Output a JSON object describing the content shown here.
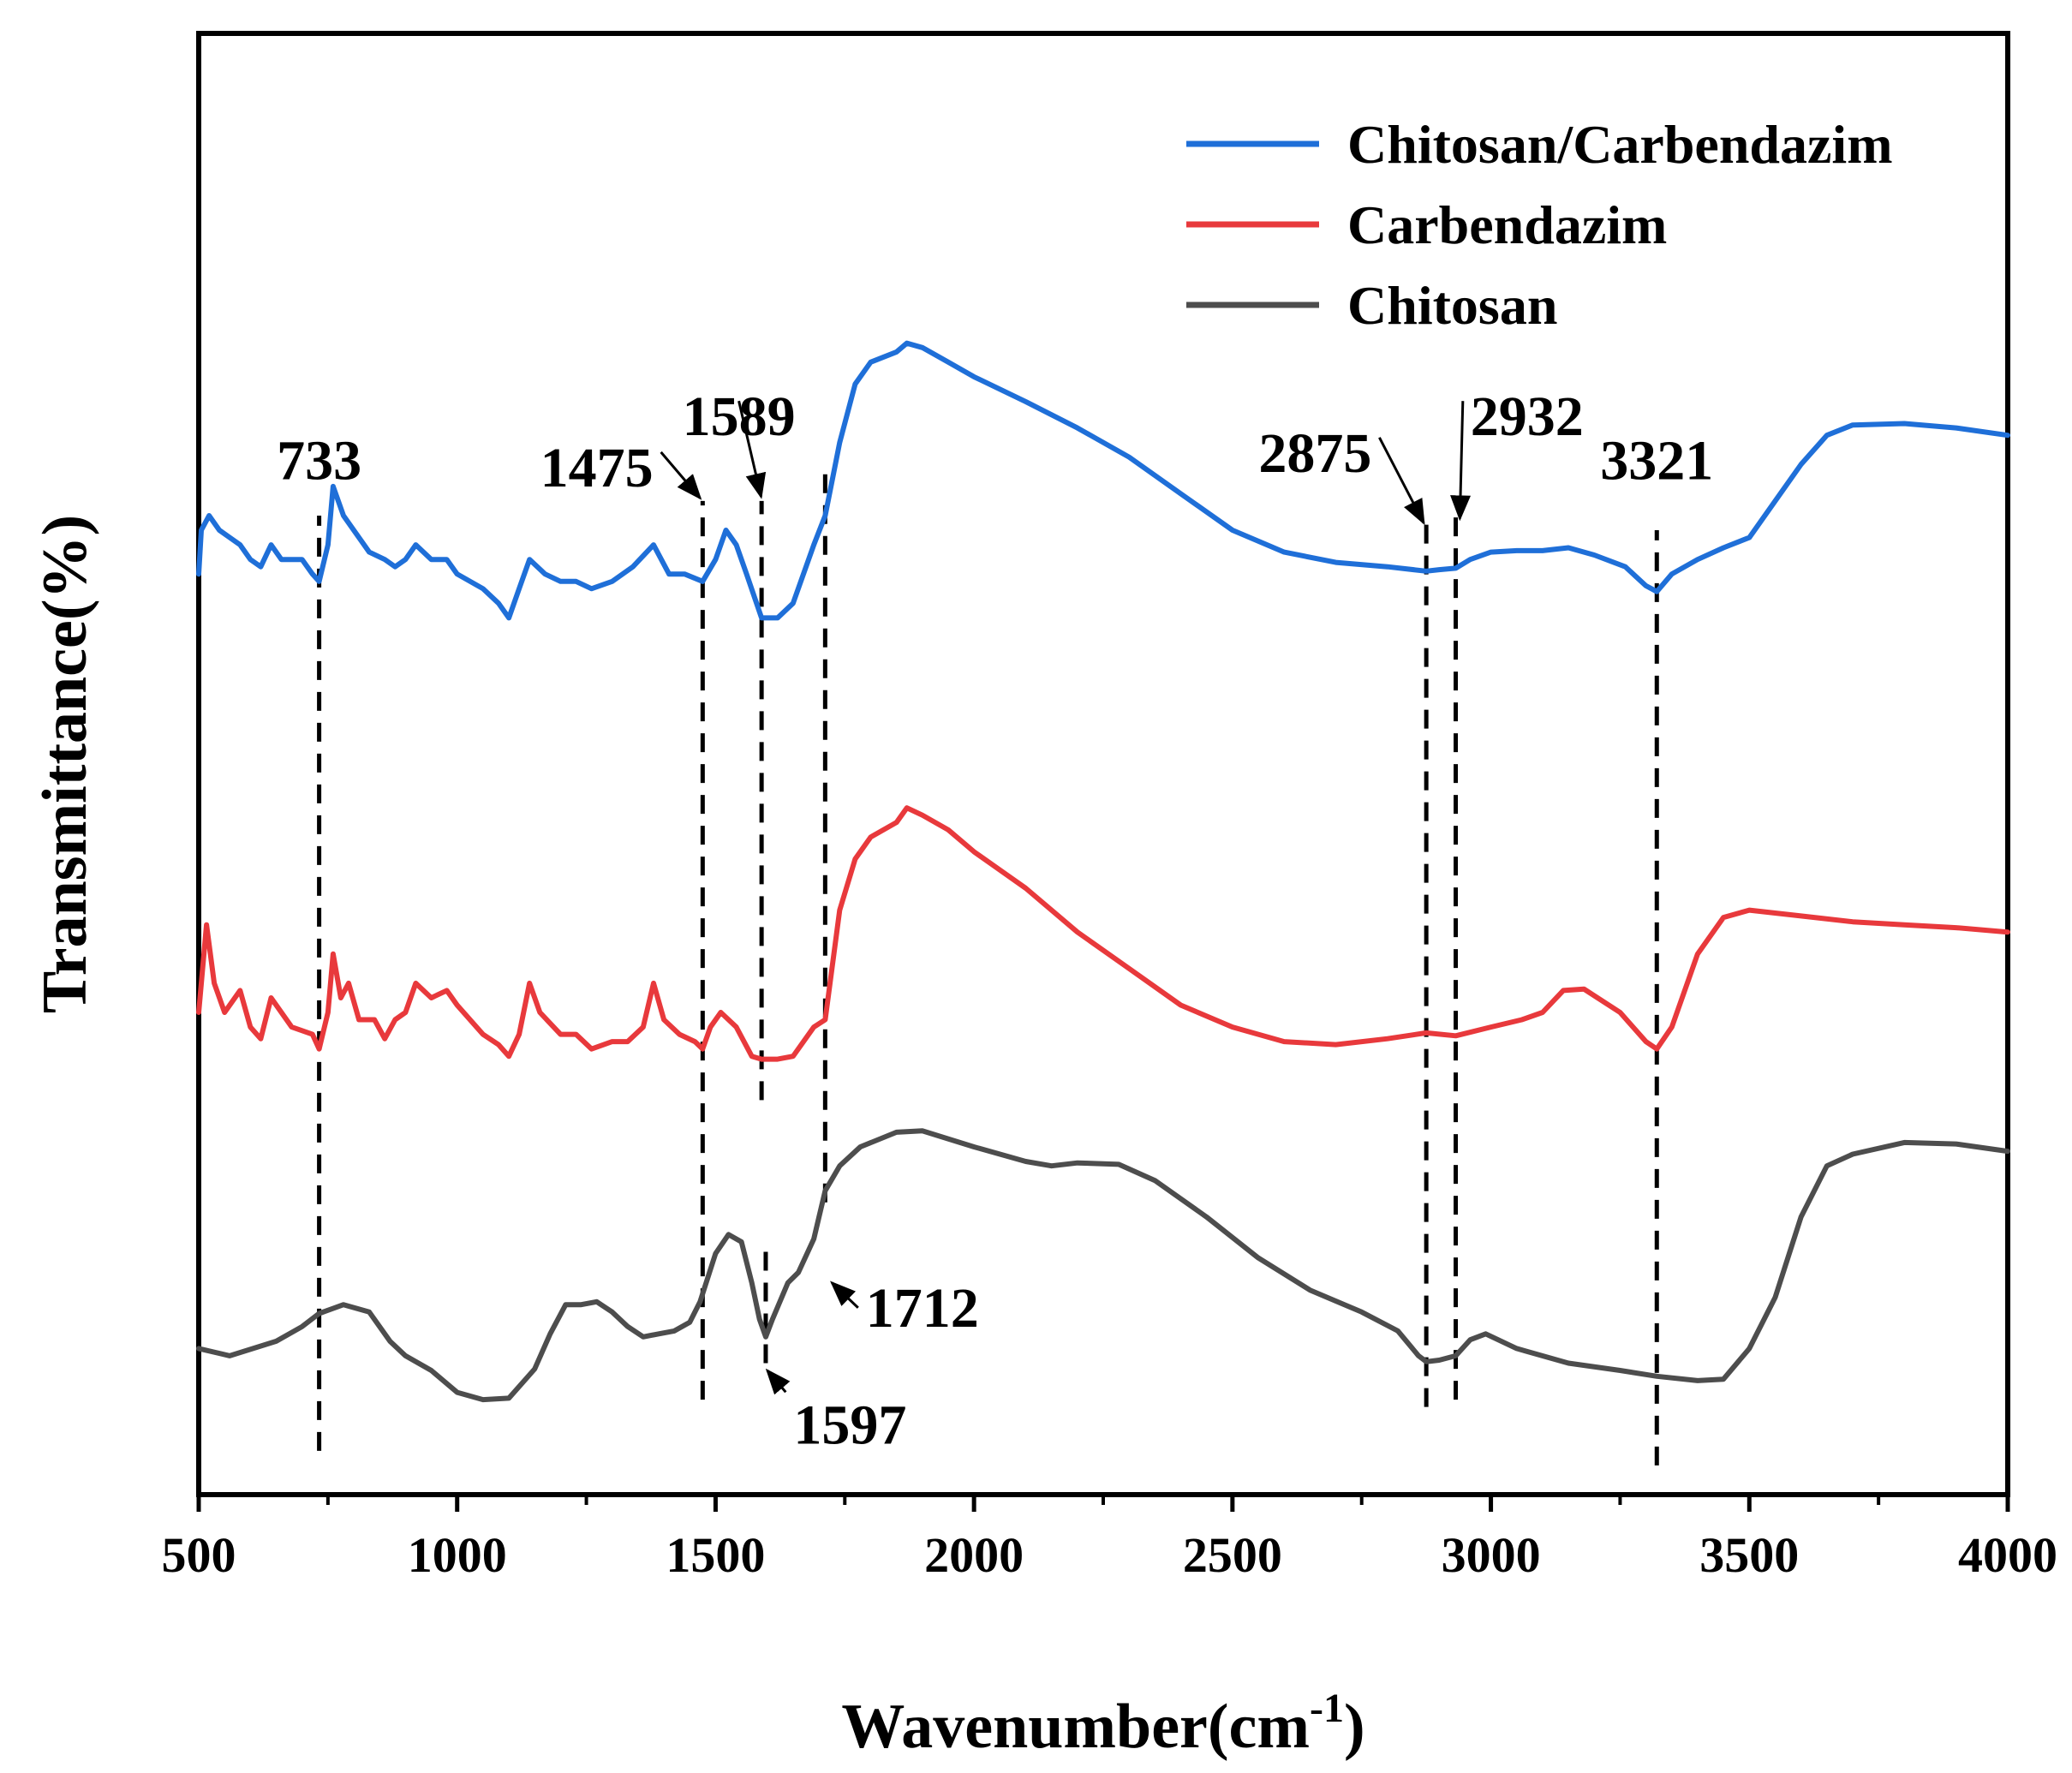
{
  "chart_data": {
    "type": "line",
    "title": "",
    "xlabel": "Wavenumber(cm",
    "xlabel_sup": "-1",
    "xlabel_suffix": ")",
    "ylabel": "Transmittance(%)",
    "xlim": [
      500,
      4000
    ],
    "ylim": [
      0,
      100
    ],
    "x_ticks": [
      500,
      1000,
      1500,
      2000,
      2500,
      3000,
      3500,
      4000
    ],
    "x_tick_labels": [
      "500",
      "1000",
      "1500",
      "2000",
      "2500",
      "3000",
      "3500",
      "4000"
    ],
    "legend_position": "top-right",
    "series": [
      {
        "name": "Chitosan",
        "color": "#4d4d4d",
        "points": [
          [
            500,
            10
          ],
          [
            560,
            9.5
          ],
          [
            650,
            10.5
          ],
          [
            700,
            11.5
          ],
          [
            733,
            12.4
          ],
          [
            780,
            13
          ],
          [
            830,
            12.5
          ],
          [
            870,
            10.5
          ],
          [
            900,
            9.5
          ],
          [
            950,
            8.5
          ],
          [
            1000,
            7
          ],
          [
            1050,
            6.5
          ],
          [
            1100,
            6.6
          ],
          [
            1150,
            8.6
          ],
          [
            1180,
            11
          ],
          [
            1210,
            13
          ],
          [
            1240,
            13
          ],
          [
            1270,
            13.2
          ],
          [
            1300,
            12.5
          ],
          [
            1330,
            11.5
          ],
          [
            1360,
            10.8
          ],
          [
            1390,
            11
          ],
          [
            1420,
            11.2
          ],
          [
            1450,
            11.8
          ],
          [
            1470,
            13.2
          ],
          [
            1500,
            16.5
          ],
          [
            1525,
            17.8
          ],
          [
            1550,
            17.3
          ],
          [
            1570,
            14.5
          ],
          [
            1585,
            12
          ],
          [
            1597,
            10.8
          ],
          [
            1610,
            12
          ],
          [
            1640,
            14.5
          ],
          [
            1660,
            15.2
          ],
          [
            1690,
            17.5
          ],
          [
            1712,
            20.8
          ],
          [
            1740,
            22.5
          ],
          [
            1780,
            23.8
          ],
          [
            1850,
            24.8
          ],
          [
            1900,
            24.9
          ],
          [
            2000,
            23.8
          ],
          [
            2100,
            22.8
          ],
          [
            2150,
            22.5
          ],
          [
            2200,
            22.7
          ],
          [
            2280,
            22.6
          ],
          [
            2350,
            21.5
          ],
          [
            2450,
            19
          ],
          [
            2550,
            16.2
          ],
          [
            2650,
            14
          ],
          [
            2750,
            12.5
          ],
          [
            2820,
            11.2
          ],
          [
            2860,
            9.5
          ],
          [
            2875,
            9.1
          ],
          [
            2900,
            9.2
          ],
          [
            2932,
            9.5
          ],
          [
            2960,
            10.6
          ],
          [
            2990,
            11
          ],
          [
            3050,
            10
          ],
          [
            3150,
            9
          ],
          [
            3250,
            8.5
          ],
          [
            3321,
            8.1
          ],
          [
            3400,
            7.8
          ],
          [
            3450,
            7.9
          ],
          [
            3500,
            10
          ],
          [
            3550,
            13.5
          ],
          [
            3600,
            19
          ],
          [
            3650,
            22.5
          ],
          [
            3700,
            23.3
          ],
          [
            3800,
            24.1
          ],
          [
            3900,
            24
          ],
          [
            4000,
            23.5
          ]
        ]
      },
      {
        "name": "Carbendazim",
        "color": "#e8393c",
        "points": [
          [
            500,
            33
          ],
          [
            515,
            39
          ],
          [
            530,
            35
          ],
          [
            550,
            33
          ],
          [
            580,
            34.5
          ],
          [
            600,
            32
          ],
          [
            620,
            31.2
          ],
          [
            640,
            34
          ],
          [
            680,
            32
          ],
          [
            720,
            31.5
          ],
          [
            733,
            30.5
          ],
          [
            750,
            33
          ],
          [
            760,
            37
          ],
          [
            775,
            34
          ],
          [
            790,
            35
          ],
          [
            810,
            32.5
          ],
          [
            840,
            32.5
          ],
          [
            860,
            31.2
          ],
          [
            880,
            32.5
          ],
          [
            900,
            33
          ],
          [
            920,
            35
          ],
          [
            950,
            34
          ],
          [
            980,
            34.5
          ],
          [
            1000,
            33.5
          ],
          [
            1050,
            31.5
          ],
          [
            1080,
            30.8
          ],
          [
            1100,
            30
          ],
          [
            1120,
            31.5
          ],
          [
            1140,
            35
          ],
          [
            1160,
            33
          ],
          [
            1200,
            31.5
          ],
          [
            1230,
            31.5
          ],
          [
            1260,
            30.5
          ],
          [
            1300,
            31
          ],
          [
            1330,
            31
          ],
          [
            1360,
            32
          ],
          [
            1380,
            35
          ],
          [
            1400,
            32.5
          ],
          [
            1430,
            31.5
          ],
          [
            1460,
            31
          ],
          [
            1475,
            30.5
          ],
          [
            1490,
            32
          ],
          [
            1510,
            33
          ],
          [
            1540,
            32
          ],
          [
            1570,
            30
          ],
          [
            1589,
            29.8
          ],
          [
            1620,
            29.8
          ],
          [
            1650,
            30
          ],
          [
            1690,
            32
          ],
          [
            1712,
            32.5
          ],
          [
            1740,
            40
          ],
          [
            1770,
            43.5
          ],
          [
            1800,
            45
          ],
          [
            1850,
            46
          ],
          [
            1870,
            47
          ],
          [
            1900,
            46.5
          ],
          [
            1950,
            45.5
          ],
          [
            2000,
            44
          ],
          [
            2100,
            41.5
          ],
          [
            2200,
            38.5
          ],
          [
            2300,
            36
          ],
          [
            2400,
            33.5
          ],
          [
            2500,
            32
          ],
          [
            2600,
            31
          ],
          [
            2700,
            30.8
          ],
          [
            2800,
            31.2
          ],
          [
            2875,
            31.6
          ],
          [
            2932,
            31.4
          ],
          [
            3000,
            32
          ],
          [
            3060,
            32.5
          ],
          [
            3100,
            33
          ],
          [
            3140,
            34.5
          ],
          [
            3180,
            34.6
          ],
          [
            3250,
            33
          ],
          [
            3300,
            31
          ],
          [
            3321,
            30.5
          ],
          [
            3350,
            32
          ],
          [
            3400,
            37
          ],
          [
            3450,
            39.5
          ],
          [
            3500,
            40
          ],
          [
            3600,
            39.6
          ],
          [
            3700,
            39.2
          ],
          [
            3800,
            39
          ],
          [
            3900,
            38.8
          ],
          [
            4000,
            38.5
          ]
        ]
      },
      {
        "name": "Chitosan/Carbendazim",
        "color": "#1f6fd8",
        "points": [
          [
            500,
            63
          ],
          [
            505,
            66
          ],
          [
            520,
            67
          ],
          [
            540,
            66
          ],
          [
            560,
            65.5
          ],
          [
            580,
            65
          ],
          [
            600,
            64
          ],
          [
            620,
            63.5
          ],
          [
            640,
            65
          ],
          [
            660,
            64
          ],
          [
            700,
            64
          ],
          [
            720,
            63
          ],
          [
            733,
            62.5
          ],
          [
            750,
            65
          ],
          [
            760,
            69
          ],
          [
            780,
            67
          ],
          [
            800,
            66
          ],
          [
            830,
            64.5
          ],
          [
            860,
            64
          ],
          [
            880,
            63.5
          ],
          [
            900,
            64
          ],
          [
            920,
            65
          ],
          [
            950,
            64
          ],
          [
            980,
            64
          ],
          [
            1000,
            63
          ],
          [
            1050,
            62
          ],
          [
            1080,
            61
          ],
          [
            1100,
            60
          ],
          [
            1120,
            62
          ],
          [
            1140,
            64
          ],
          [
            1170,
            63
          ],
          [
            1200,
            62.5
          ],
          [
            1230,
            62.5
          ],
          [
            1260,
            62
          ],
          [
            1300,
            62.5
          ],
          [
            1340,
            63.5
          ],
          [
            1380,
            65
          ],
          [
            1410,
            63
          ],
          [
            1440,
            63
          ],
          [
            1475,
            62.5
          ],
          [
            1500,
            64
          ],
          [
            1520,
            66
          ],
          [
            1540,
            65
          ],
          [
            1560,
            63
          ],
          [
            1589,
            60
          ],
          [
            1620,
            60
          ],
          [
            1650,
            61
          ],
          [
            1690,
            65
          ],
          [
            1712,
            67
          ],
          [
            1740,
            72
          ],
          [
            1770,
            76
          ],
          [
            1800,
            77.5
          ],
          [
            1850,
            78.2
          ],
          [
            1870,
            78.8
          ],
          [
            1900,
            78.5
          ],
          [
            1950,
            77.5
          ],
          [
            2000,
            76.5
          ],
          [
            2100,
            74.8
          ],
          [
            2200,
            73
          ],
          [
            2300,
            71
          ],
          [
            2400,
            68.5
          ],
          [
            2500,
            66
          ],
          [
            2600,
            64.5
          ],
          [
            2700,
            63.8
          ],
          [
            2800,
            63.5
          ],
          [
            2875,
            63.2
          ],
          [
            2900,
            63.3
          ],
          [
            2932,
            63.4
          ],
          [
            2960,
            64
          ],
          [
            3000,
            64.5
          ],
          [
            3050,
            64.6
          ],
          [
            3100,
            64.6
          ],
          [
            3150,
            64.8
          ],
          [
            3200,
            64.3
          ],
          [
            3260,
            63.5
          ],
          [
            3300,
            62.2
          ],
          [
            3321,
            61.8
          ],
          [
            3350,
            63
          ],
          [
            3400,
            64
          ],
          [
            3450,
            64.8
          ],
          [
            3500,
            65.5
          ],
          [
            3550,
            68
          ],
          [
            3600,
            70.5
          ],
          [
            3650,
            72.5
          ],
          [
            3700,
            73.2
          ],
          [
            3800,
            73.3
          ],
          [
            3900,
            73
          ],
          [
            4000,
            72.5
          ]
        ]
      }
    ],
    "reference_lines": [
      {
        "x": 733,
        "y_from": 3,
        "y_to": 67,
        "label": "733"
      },
      {
        "x": 1475,
        "y_from": 6.5,
        "y_to": 68,
        "label": "1475"
      },
      {
        "x": 1589,
        "y_from": 27,
        "y_to": 68,
        "label": "1589"
      },
      {
        "x": 1712,
        "y_from": 20,
        "y_to": 70,
        "label": "1712"
      },
      {
        "x": 1597,
        "y_from": 9,
        "y_to": 17,
        "label": "1597"
      },
      {
        "x": 2875,
        "y_from": 6,
        "y_to": 67,
        "label": "2875"
      },
      {
        "x": 2932,
        "y_from": 6.5,
        "y_to": 67,
        "label": "2932"
      },
      {
        "x": 3321,
        "y_from": 2,
        "y_to": 66,
        "label": "3321"
      }
    ],
    "annotations": [
      {
        "text": "733",
        "x": 733,
        "y": 69.5,
        "arrow": false
      },
      {
        "text": "1475",
        "x": 1270,
        "y": 69,
        "arrow": true,
        "arrow_to": [
          1470,
          68.2
        ]
      },
      {
        "text": "1589",
        "x": 1545,
        "y": 72.5,
        "arrow": true,
        "arrow_to": [
          1588,
          68.3
        ]
      },
      {
        "text": "2875",
        "x": 2660,
        "y": 70,
        "arrow": true,
        "arrow_to": [
          2870,
          66.5
        ]
      },
      {
        "text": "2932",
        "x": 3070,
        "y": 72.5,
        "arrow": true,
        "arrow_to": [
          2940,
          66.8
        ]
      },
      {
        "text": "3321",
        "x": 3321,
        "y": 69.5,
        "arrow": false
      },
      {
        "text": "1712",
        "x": 1900,
        "y": 11.5,
        "arrow": true,
        "arrow_to": [
          1725,
          14.5
        ]
      },
      {
        "text": "1597",
        "x": 1760,
        "y": 3.5,
        "arrow": true,
        "arrow_to": [
          1600,
          8.5
        ]
      }
    ]
  }
}
